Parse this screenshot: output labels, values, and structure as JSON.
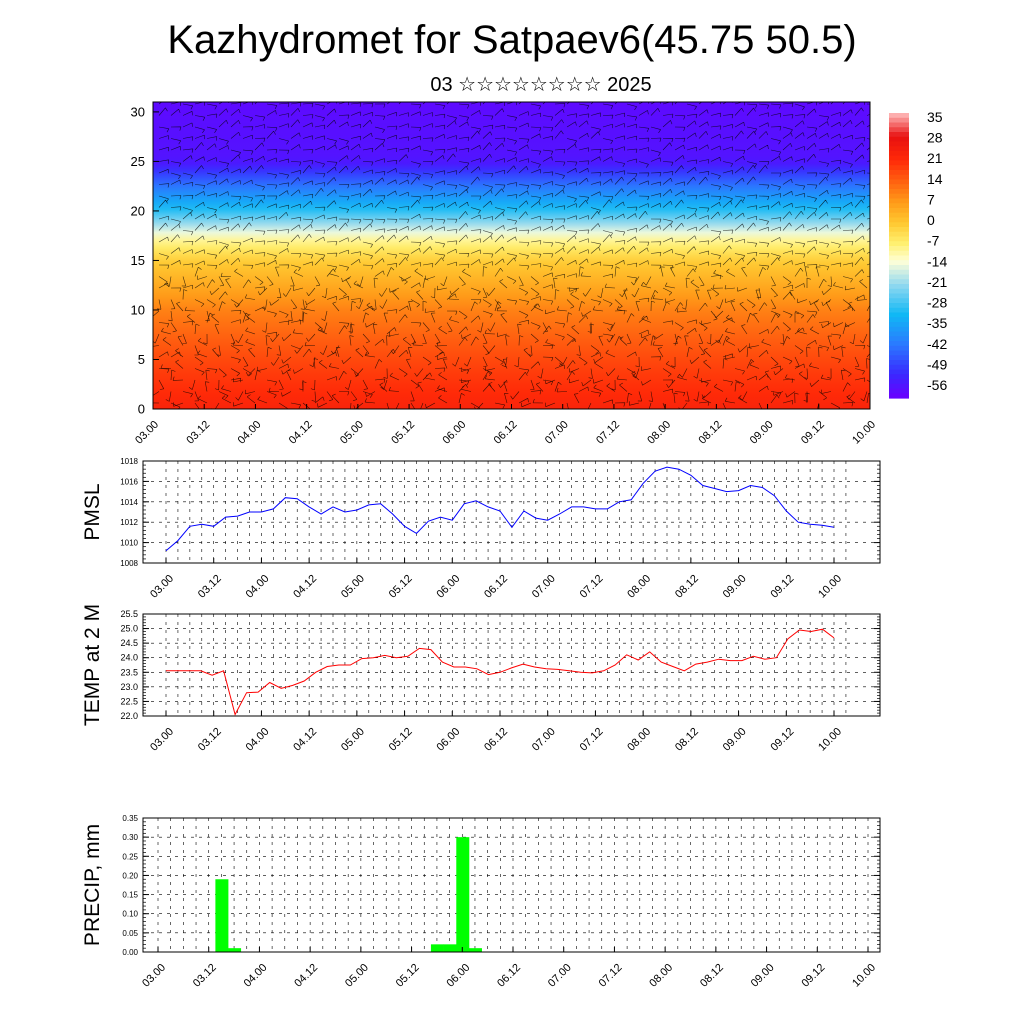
{
  "title": "Kazhydromet for Satpaev6(45.75 50.5)",
  "subtitle": "03 ☆☆☆☆☆☆☆☆ 2025",
  "chart_data": [
    {
      "type": "heatmap",
      "panel": "cross-section",
      "title": "",
      "ylabel": "",
      "ylim": [
        0,
        31
      ],
      "yticks": [
        "0",
        "5",
        "10",
        "15",
        "20",
        "25",
        "30"
      ],
      "xticks": [
        "03.00",
        "03.12",
        "04.00",
        "04.12",
        "05.00",
        "05.12",
        "06.00",
        "06.12",
        "07.00",
        "07.12",
        "08.00",
        "08.12",
        "09.00",
        "09.12",
        "10.00"
      ],
      "colorbar_labels": [
        "35",
        "28",
        "21",
        "14",
        "7",
        "0",
        "-7",
        "-14",
        "-21",
        "-28",
        "-35",
        "-42",
        "-49",
        "-56"
      ],
      "temperature_by_level": [
        {
          "level": 0,
          "value": 22
        },
        {
          "level": 5,
          "value": 16
        },
        {
          "level": 10,
          "value": 9
        },
        {
          "level": 15,
          "value": -2
        },
        {
          "level": 17,
          "value": -10
        },
        {
          "level": 20,
          "value": -30
        },
        {
          "level": 23,
          "value": -45
        },
        {
          "level": 25,
          "value": -56
        },
        {
          "level": 31,
          "value": -58
        }
      ],
      "overlay": "wind barbs"
    },
    {
      "type": "line",
      "panel": "pmsl",
      "ylabel": "PMSL",
      "ylim": [
        1008,
        1018
      ],
      "yticks": [
        "1008",
        "1010",
        "1012",
        "1014",
        "1016",
        "1018"
      ],
      "xticks": [
        "03.00",
        "03.12",
        "04.00",
        "04.12",
        "05.00",
        "05.12",
        "06.00",
        "06.12",
        "07.00",
        "07.12",
        "08.00",
        "08.12",
        "09.00",
        "09.12",
        "10.00"
      ],
      "color": "#0000ff",
      "series": [
        {
          "values": [
            1009.2,
            1010.2,
            1011.6,
            1011.8,
            1011.6,
            1012.5,
            1012.6,
            1013.0,
            1013.0,
            1013.3,
            1014.4,
            1014.3,
            1013.5,
            1012.8,
            1013.5,
            1013.0,
            1013.2,
            1013.7,
            1013.8,
            1012.8,
            1011.6,
            1010.9,
            1012.1,
            1012.5,
            1012.2,
            1013.8,
            1014.1,
            1013.5,
            1013.1,
            1011.5,
            1013.1,
            1012.4,
            1012.2,
            1012.8,
            1013.5,
            1013.5,
            1013.3,
            1013.3,
            1014.0,
            1014.2,
            1015.8,
            1017.0,
            1017.4,
            1017.2,
            1016.6,
            1015.6,
            1015.3,
            1015.0,
            1015.1,
            1015.6,
            1015.4,
            1014.6,
            1013.1,
            1012.0,
            1011.8,
            1011.7,
            1011.5
          ]
        }
      ]
    },
    {
      "type": "line",
      "panel": "temp2m",
      "ylabel": "TEMP at 2 M",
      "ylim": [
        22.0,
        25.5
      ],
      "yticks": [
        "22.0",
        "22.5",
        "23.0",
        "23.5",
        "24.0",
        "24.5",
        "25.0",
        "25.5"
      ],
      "xticks": [
        "03.00",
        "03.12",
        "04.00",
        "04.12",
        "05.00",
        "05.12",
        "06.00",
        "06.12",
        "07.00",
        "07.12",
        "08.00",
        "08.12",
        "09.00",
        "09.12",
        "10.00"
      ],
      "color": "#ff0000",
      "series": [
        {
          "values": [
            23.55,
            23.55,
            23.55,
            23.55,
            23.4,
            23.55,
            22.05,
            22.8,
            22.82,
            23.15,
            22.95,
            23.05,
            23.2,
            23.5,
            23.7,
            23.75,
            23.75,
            23.97,
            24.0,
            24.08,
            24.0,
            24.05,
            24.32,
            24.28,
            23.85,
            23.68,
            23.68,
            23.62,
            23.42,
            23.5,
            23.65,
            23.78,
            23.68,
            23.62,
            23.6,
            23.55,
            23.5,
            23.48,
            23.55,
            23.75,
            24.1,
            23.92,
            24.2,
            23.85,
            23.7,
            23.55,
            23.78,
            23.85,
            23.95,
            23.9,
            23.9,
            24.05,
            23.95,
            24.0,
            24.65,
            24.95,
            24.9,
            24.98,
            24.68
          ]
        }
      ]
    },
    {
      "type": "bar",
      "panel": "precip",
      "ylabel": "PRECIP, mm",
      "ylim": [
        0.0,
        0.35
      ],
      "yticks": [
        "0.00",
        "0.05",
        "0.10",
        "0.15",
        "0.20",
        "0.25",
        "0.30",
        "0.35"
      ],
      "xticks": [
        "03.00",
        "03.12",
        "04.00",
        "04.12",
        "05.00",
        "05.12",
        "06.00",
        "06.12",
        "07.00",
        "07.12",
        "08.00",
        "08.12",
        "09.00",
        "09.12",
        "10.00"
      ],
      "color": "#00ff00",
      "bars": [
        {
          "x": 15,
          "value": 0.19
        },
        {
          "x": 18,
          "value": 0.01
        },
        {
          "x": 66,
          "value": 0.02
        },
        {
          "x": 69,
          "value": 0.02
        },
        {
          "x": 72,
          "value": 0.3
        },
        {
          "x": 75,
          "value": 0.01
        }
      ]
    }
  ]
}
